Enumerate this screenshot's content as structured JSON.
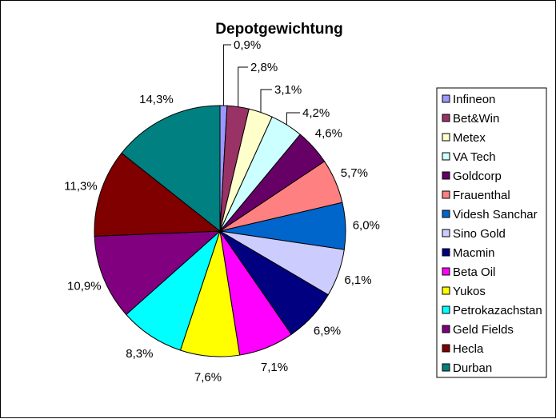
{
  "chart_data": {
    "type": "pie",
    "title": "Depotgewichtung",
    "categories": [
      "Infineon",
      "Bet&Win",
      "Metex",
      "VA Tech",
      "Goldcorp",
      "Frauenthal",
      "Videsh Sanchar",
      "Sino Gold",
      "Macmin",
      "Beta Oil",
      "Yukos",
      "Petrokazachstan",
      "Geld Fields",
      "Hecla",
      "Durban"
    ],
    "values": [
      0.9,
      2.8,
      3.1,
      4.2,
      4.6,
      5.7,
      6.0,
      6.1,
      6.9,
      7.1,
      7.6,
      8.3,
      10.9,
      11.3,
      14.3
    ],
    "labels": [
      "0,9%",
      "2,8%",
      "3,1%",
      "4,2%",
      "4,6%",
      "5,7%",
      "6,0%",
      "6,1%",
      "6,9%",
      "7,1%",
      "7,6%",
      "8,3%",
      "10,9%",
      "11,3%",
      "14,3%"
    ],
    "colors": [
      "#9999FF",
      "#993366",
      "#FFFFCC",
      "#CCFFFF",
      "#660066",
      "#FF8080",
      "#0066CC",
      "#CCCCFF",
      "#000080",
      "#FF00FF",
      "#FFFF00",
      "#00FFFF",
      "#800080",
      "#800000",
      "#008080"
    ],
    "start_angle": "12 o'clock",
    "direction": "clockwise",
    "legend_position": "right"
  }
}
